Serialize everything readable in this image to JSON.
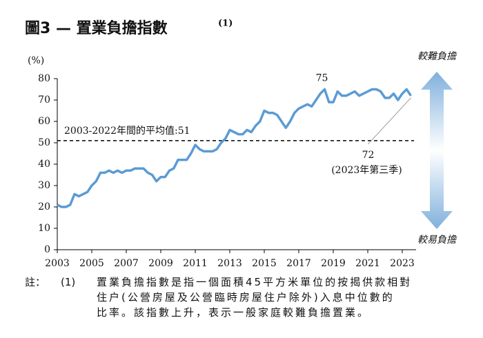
{
  "chart_data": {
    "type": "line",
    "title": "圖3 — 置業負擔指數",
    "title_note": "(1)",
    "y_label": "(%)",
    "top_label": "較難負擔",
    "bottom_label": "較易負擔",
    "x": [
      2003,
      2003.25,
      2003.5,
      2003.75,
      2004,
      2004.25,
      2004.5,
      2004.75,
      2005,
      2005.25,
      2005.5,
      2005.75,
      2006,
      2006.25,
      2006.5,
      2006.75,
      2007,
      2007.25,
      2007.5,
      2007.75,
      2008,
      2008.25,
      2008.5,
      2008.75,
      2009,
      2009.25,
      2009.5,
      2009.75,
      2010,
      2010.25,
      2010.5,
      2010.75,
      2011,
      2011.25,
      2011.5,
      2011.75,
      2012,
      2012.25,
      2012.5,
      2012.75,
      2013,
      2013.25,
      2013.5,
      2013.75,
      2014,
      2014.25,
      2014.5,
      2014.75,
      2015,
      2015.25,
      2015.5,
      2015.75,
      2016,
      2016.25,
      2016.5,
      2016.75,
      2017,
      2017.25,
      2017.5,
      2017.75,
      2018,
      2018.25,
      2018.5,
      2018.75,
      2019,
      2019.25,
      2019.5,
      2019.75,
      2020,
      2020.25,
      2020.5,
      2020.75,
      2021,
      2021.25,
      2021.5,
      2021.75,
      2022,
      2022.25,
      2022.5,
      2022.75,
      2023,
      2023.25,
      2023.5
    ],
    "series": [
      {
        "color": "#5b9bd5",
        "values": [
          21,
          20,
          20,
          21,
          26,
          25,
          26,
          27,
          30,
          32,
          36,
          36,
          37,
          36,
          37,
          36,
          37,
          37,
          38,
          38,
          38,
          36,
          35,
          32,
          34,
          34,
          37,
          38,
          42,
          42,
          42,
          45,
          49,
          47,
          46,
          46,
          46,
          47,
          50,
          52,
          56,
          55,
          54,
          54,
          56,
          55,
          58,
          60,
          65,
          64,
          64,
          63,
          60,
          57,
          60,
          64,
          66,
          67,
          68,
          67,
          70,
          73,
          75,
          69,
          69,
          74,
          72,
          72,
          73,
          74,
          72,
          73,
          74,
          75,
          75,
          74,
          71,
          71,
          73,
          70,
          73,
          75,
          72
        ]
      }
    ],
    "xlim": [
      2003,
      2023.8
    ],
    "xticks": [
      2003,
      2005,
      2007,
      2009,
      2011,
      2013,
      2015,
      2017,
      2019,
      2021,
      2023
    ],
    "ylim": [
      0,
      80
    ],
    "yticks": [
      0,
      10,
      20,
      30,
      40,
      50,
      60,
      70,
      80
    ],
    "average": {
      "value": 51,
      "label": "2003-2022年間的平均值:51"
    },
    "point_labels": [
      {
        "x": 2018.5,
        "y": 75
      },
      {
        "x": 2023.5,
        "y": 72,
        "note": "(2023年第三季)"
      }
    ]
  },
  "footnote": {
    "mark": "註：",
    "number": "(1)",
    "lines": [
      "置業負擔指數是指一個面積45平方米單位的按揭供款相對",
      "住户(公營房屋及公營臨時房屋住户除外)入息中位數的",
      "比率。該指數上升，表示一般家庭較難負擔置業。"
    ]
  }
}
